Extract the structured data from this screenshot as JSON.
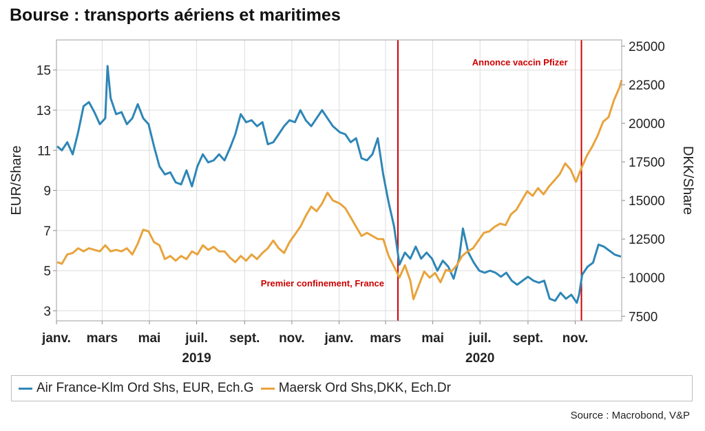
{
  "chart_data": {
    "type": "line",
    "title": "Bourse : transports aériens et maritimes",
    "source": "Source : Macrobond, V&P",
    "y_left": {
      "label": "EUR/Share",
      "min": 2.5,
      "max": 16.5,
      "ticks": [
        3,
        5,
        7,
        9,
        11,
        13,
        15
      ]
    },
    "y_right": {
      "label": "DKK/Share",
      "min": 7200,
      "max": 25400,
      "ticks": [
        7500,
        10000,
        12500,
        15000,
        17500,
        20000,
        22500,
        25000
      ]
    },
    "x_range": [
      "2019-01-01",
      "2020-12-31"
    ],
    "x_ticks": [
      {
        "date": "2019-01-01",
        "label": "janv."
      },
      {
        "date": "2019-03-01",
        "label": "mars"
      },
      {
        "date": "2019-05-01",
        "label": "mai"
      },
      {
        "date": "2019-07-01",
        "label": "juil."
      },
      {
        "date": "2019-09-01",
        "label": "sept."
      },
      {
        "date": "2019-11-01",
        "label": "nov."
      },
      {
        "date": "2020-01-01",
        "label": "janv."
      },
      {
        "date": "2020-03-01",
        "label": "mars"
      },
      {
        "date": "2020-05-01",
        "label": "mai"
      },
      {
        "date": "2020-07-01",
        "label": "juil."
      },
      {
        "date": "2020-09-01",
        "label": "sept."
      },
      {
        "date": "2020-11-01",
        "label": "nov."
      }
    ],
    "year_labels": [
      {
        "date": "2019-07-01",
        "label": "2019"
      },
      {
        "date": "2020-07-01",
        "label": "2020"
      }
    ],
    "grid": true,
    "legend_position": "bottom",
    "annotations": [
      {
        "date": "2020-03-17",
        "label": "Premier confinement, France",
        "color": "#cc0000",
        "label_position": "bottom-left"
      },
      {
        "date": "2020-11-09",
        "label": "Annonce vaccin Pfizer",
        "color": "#cc0000",
        "label_position": "top-left"
      }
    ],
    "series": [
      {
        "name": "Air France-Klm Ord Shs, EUR, Ech.G",
        "axis": "left",
        "color": "#2e86b6",
        "points": [
          [
            "2019-01-02",
            11.2
          ],
          [
            "2019-01-08",
            11.0
          ],
          [
            "2019-01-15",
            11.4
          ],
          [
            "2019-01-22",
            10.8
          ],
          [
            "2019-01-29",
            11.9
          ],
          [
            "2019-02-05",
            13.2
          ],
          [
            "2019-02-12",
            13.4
          ],
          [
            "2019-02-19",
            12.9
          ],
          [
            "2019-02-26",
            12.3
          ],
          [
            "2019-03-05",
            12.6
          ],
          [
            "2019-03-08",
            15.2
          ],
          [
            "2019-03-12",
            13.6
          ],
          [
            "2019-03-19",
            12.8
          ],
          [
            "2019-03-26",
            12.9
          ],
          [
            "2019-04-02",
            12.3
          ],
          [
            "2019-04-09",
            12.6
          ],
          [
            "2019-04-16",
            13.3
          ],
          [
            "2019-04-23",
            12.6
          ],
          [
            "2019-04-30",
            12.3
          ],
          [
            "2019-05-07",
            11.2
          ],
          [
            "2019-05-14",
            10.2
          ],
          [
            "2019-05-21",
            9.8
          ],
          [
            "2019-05-28",
            9.9
          ],
          [
            "2019-06-04",
            9.4
          ],
          [
            "2019-06-11",
            9.3
          ],
          [
            "2019-06-18",
            10.0
          ],
          [
            "2019-06-25",
            9.2
          ],
          [
            "2019-07-02",
            10.2
          ],
          [
            "2019-07-09",
            10.8
          ],
          [
            "2019-07-16",
            10.4
          ],
          [
            "2019-07-23",
            10.5
          ],
          [
            "2019-07-30",
            10.8
          ],
          [
            "2019-08-06",
            10.5
          ],
          [
            "2019-08-13",
            11.1
          ],
          [
            "2019-08-20",
            11.8
          ],
          [
            "2019-08-27",
            12.8
          ],
          [
            "2019-09-03",
            12.4
          ],
          [
            "2019-09-10",
            12.5
          ],
          [
            "2019-09-17",
            12.2
          ],
          [
            "2019-09-24",
            12.4
          ],
          [
            "2019-10-01",
            11.3
          ],
          [
            "2019-10-08",
            11.4
          ],
          [
            "2019-10-15",
            11.8
          ],
          [
            "2019-10-22",
            12.2
          ],
          [
            "2019-10-29",
            12.5
          ],
          [
            "2019-11-05",
            12.4
          ],
          [
            "2019-11-12",
            13.0
          ],
          [
            "2019-11-19",
            12.5
          ],
          [
            "2019-11-26",
            12.2
          ],
          [
            "2019-12-03",
            12.6
          ],
          [
            "2019-12-10",
            13.0
          ],
          [
            "2019-12-17",
            12.6
          ],
          [
            "2019-12-24",
            12.2
          ],
          [
            "2020-01-02",
            11.9
          ],
          [
            "2020-01-09",
            11.8
          ],
          [
            "2020-01-16",
            11.4
          ],
          [
            "2020-01-23",
            11.6
          ],
          [
            "2020-01-30",
            10.6
          ],
          [
            "2020-02-06",
            10.5
          ],
          [
            "2020-02-13",
            10.8
          ],
          [
            "2020-02-20",
            11.6
          ],
          [
            "2020-02-27",
            9.8
          ],
          [
            "2020-03-05",
            8.4
          ],
          [
            "2020-03-12",
            7.2
          ],
          [
            "2020-03-19",
            5.3
          ],
          [
            "2020-03-26",
            5.9
          ],
          [
            "2020-04-02",
            5.6
          ],
          [
            "2020-04-09",
            6.2
          ],
          [
            "2020-04-16",
            5.6
          ],
          [
            "2020-04-23",
            5.9
          ],
          [
            "2020-04-30",
            5.6
          ],
          [
            "2020-05-07",
            5.0
          ],
          [
            "2020-05-14",
            5.5
          ],
          [
            "2020-05-21",
            5.2
          ],
          [
            "2020-05-28",
            4.6
          ],
          [
            "2020-06-04",
            5.6
          ],
          [
            "2020-06-09",
            7.1
          ],
          [
            "2020-06-16",
            5.9
          ],
          [
            "2020-06-23",
            5.4
          ],
          [
            "2020-06-30",
            5.0
          ],
          [
            "2020-07-07",
            4.9
          ],
          [
            "2020-07-14",
            5.0
          ],
          [
            "2020-07-21",
            4.9
          ],
          [
            "2020-07-28",
            4.7
          ],
          [
            "2020-08-04",
            4.9
          ],
          [
            "2020-08-11",
            4.5
          ],
          [
            "2020-08-18",
            4.3
          ],
          [
            "2020-08-25",
            4.5
          ],
          [
            "2020-09-01",
            4.7
          ],
          [
            "2020-09-08",
            4.5
          ],
          [
            "2020-09-15",
            4.4
          ],
          [
            "2020-09-22",
            4.5
          ],
          [
            "2020-09-29",
            3.6
          ],
          [
            "2020-10-06",
            3.5
          ],
          [
            "2020-10-13",
            3.9
          ],
          [
            "2020-10-20",
            3.6
          ],
          [
            "2020-10-27",
            3.8
          ],
          [
            "2020-11-03",
            3.4
          ],
          [
            "2020-11-06",
            3.8
          ],
          [
            "2020-11-10",
            4.8
          ],
          [
            "2020-11-17",
            5.2
          ],
          [
            "2020-11-24",
            5.4
          ],
          [
            "2020-12-01",
            6.3
          ],
          [
            "2020-12-08",
            6.2
          ],
          [
            "2020-12-15",
            6.0
          ],
          [
            "2020-12-22",
            5.8
          ],
          [
            "2020-12-30",
            5.7
          ]
        ]
      },
      {
        "name": "Maersk Ord Shs,DKK, Ech.Dr",
        "axis": "right",
        "color": "#e8a33c",
        "points": [
          [
            "2019-01-02",
            11000
          ],
          [
            "2019-01-08",
            10900
          ],
          [
            "2019-01-15",
            11500
          ],
          [
            "2019-01-22",
            11600
          ],
          [
            "2019-01-29",
            11900
          ],
          [
            "2019-02-05",
            11700
          ],
          [
            "2019-02-12",
            11900
          ],
          [
            "2019-02-19",
            11800
          ],
          [
            "2019-02-26",
            11700
          ],
          [
            "2019-03-05",
            12100
          ],
          [
            "2019-03-12",
            11700
          ],
          [
            "2019-03-19",
            11800
          ],
          [
            "2019-03-26",
            11700
          ],
          [
            "2019-04-02",
            11900
          ],
          [
            "2019-04-09",
            11500
          ],
          [
            "2019-04-16",
            12200
          ],
          [
            "2019-04-23",
            13100
          ],
          [
            "2019-04-30",
            13000
          ],
          [
            "2019-05-07",
            12300
          ],
          [
            "2019-05-14",
            12100
          ],
          [
            "2019-05-21",
            11200
          ],
          [
            "2019-05-28",
            11400
          ],
          [
            "2019-06-04",
            11100
          ],
          [
            "2019-06-11",
            11400
          ],
          [
            "2019-06-18",
            11200
          ],
          [
            "2019-06-25",
            11700
          ],
          [
            "2019-07-02",
            11500
          ],
          [
            "2019-07-09",
            12100
          ],
          [
            "2019-07-16",
            11800
          ],
          [
            "2019-07-23",
            12000
          ],
          [
            "2019-07-30",
            11700
          ],
          [
            "2019-08-06",
            11700
          ],
          [
            "2019-08-13",
            11300
          ],
          [
            "2019-08-20",
            11000
          ],
          [
            "2019-08-27",
            11400
          ],
          [
            "2019-09-03",
            11100
          ],
          [
            "2019-09-10",
            11500
          ],
          [
            "2019-09-17",
            11200
          ],
          [
            "2019-09-24",
            11600
          ],
          [
            "2019-10-01",
            11900
          ],
          [
            "2019-10-08",
            12400
          ],
          [
            "2019-10-15",
            11900
          ],
          [
            "2019-10-22",
            11600
          ],
          [
            "2019-10-29",
            12300
          ],
          [
            "2019-11-05",
            12800
          ],
          [
            "2019-11-12",
            13300
          ],
          [
            "2019-11-19",
            14000
          ],
          [
            "2019-11-26",
            14600
          ],
          [
            "2019-12-03",
            14300
          ],
          [
            "2019-12-10",
            14800
          ],
          [
            "2019-12-17",
            15500
          ],
          [
            "2019-12-24",
            15000
          ],
          [
            "2020-01-02",
            14800
          ],
          [
            "2020-01-09",
            14500
          ],
          [
            "2020-01-16",
            13900
          ],
          [
            "2020-01-23",
            13300
          ],
          [
            "2020-01-30",
            12700
          ],
          [
            "2020-02-06",
            12900
          ],
          [
            "2020-02-13",
            12700
          ],
          [
            "2020-02-20",
            12500
          ],
          [
            "2020-02-27",
            12500
          ],
          [
            "2020-03-05",
            11400
          ],
          [
            "2020-03-12",
            10700
          ],
          [
            "2020-03-19",
            10000
          ],
          [
            "2020-03-26",
            10800
          ],
          [
            "2020-04-02",
            9800
          ],
          [
            "2020-04-06",
            8600
          ],
          [
            "2020-04-13",
            9500
          ],
          [
            "2020-04-20",
            10400
          ],
          [
            "2020-04-27",
            10000
          ],
          [
            "2020-05-04",
            10300
          ],
          [
            "2020-05-11",
            9700
          ],
          [
            "2020-05-18",
            10500
          ],
          [
            "2020-05-25",
            10400
          ],
          [
            "2020-06-01",
            10800
          ],
          [
            "2020-06-08",
            11400
          ],
          [
            "2020-06-15",
            11700
          ],
          [
            "2020-06-22",
            11900
          ],
          [
            "2020-06-29",
            12400
          ],
          [
            "2020-07-06",
            12900
          ],
          [
            "2020-07-13",
            13000
          ],
          [
            "2020-07-20",
            13300
          ],
          [
            "2020-07-27",
            13500
          ],
          [
            "2020-08-03",
            13400
          ],
          [
            "2020-08-10",
            14100
          ],
          [
            "2020-08-17",
            14400
          ],
          [
            "2020-08-24",
            15000
          ],
          [
            "2020-08-31",
            15600
          ],
          [
            "2020-09-07",
            15300
          ],
          [
            "2020-09-14",
            15800
          ],
          [
            "2020-09-21",
            15400
          ],
          [
            "2020-09-28",
            15900
          ],
          [
            "2020-10-05",
            16300
          ],
          [
            "2020-10-12",
            16700
          ],
          [
            "2020-10-19",
            17400
          ],
          [
            "2020-10-26",
            17000
          ],
          [
            "2020-11-02",
            16200
          ],
          [
            "2020-11-09",
            17100
          ],
          [
            "2020-11-16",
            17900
          ],
          [
            "2020-11-23",
            18500
          ],
          [
            "2020-11-30",
            19200
          ],
          [
            "2020-12-07",
            20100
          ],
          [
            "2020-12-14",
            20400
          ],
          [
            "2020-12-21",
            21500
          ],
          [
            "2020-12-28",
            22300
          ],
          [
            "2020-12-31",
            22800
          ]
        ]
      }
    ]
  }
}
